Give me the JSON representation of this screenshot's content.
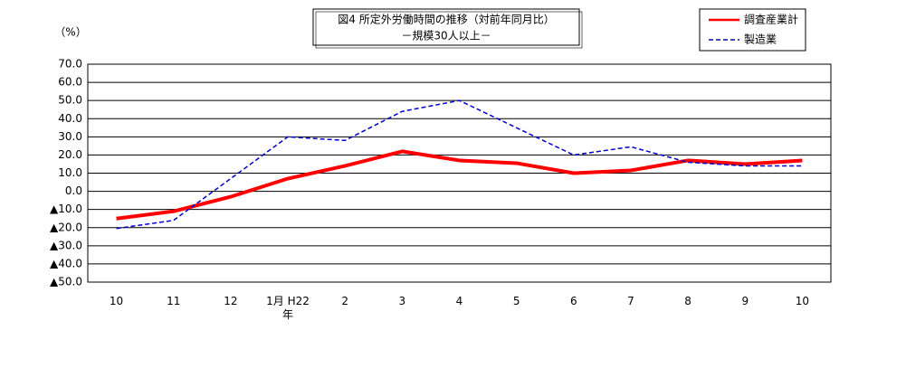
{
  "chart_data": {
    "type": "line",
    "title": "図4 所定外労働時間の推移（対前年同月比）",
    "subtitle": "－規模30人以上－",
    "y_label": "（%）",
    "categories": [
      "10",
      "11",
      "12",
      "1月 H22\n年",
      "2",
      "3",
      "4",
      "5",
      "6",
      "7",
      "8",
      "9",
      "10"
    ],
    "series": [
      {
        "name": "調査産業計",
        "color": "#ff0000",
        "dash": false,
        "values": [
          -15,
          -11,
          -3,
          7,
          14,
          22,
          17,
          15.5,
          10,
          11.5,
          17,
          15,
          17
        ]
      },
      {
        "name": "製造業",
        "color": "#0000cc",
        "dash": true,
        "values": [
          -20.5,
          -16,
          7,
          30,
          28,
          44,
          50,
          35,
          20,
          24.5,
          16,
          14,
          14
        ]
      }
    ],
    "ylim": [
      -50,
      70
    ],
    "yticks": [
      {
        "value": -50,
        "label": "▲50.0"
      },
      {
        "value": -40,
        "label": "▲40.0"
      },
      {
        "value": -30,
        "label": "▲30.0"
      },
      {
        "value": -20,
        "label": "▲20.0"
      },
      {
        "value": -10,
        "label": "▲10.0"
      },
      {
        "value": 0,
        "label": "0.0"
      },
      {
        "value": 10,
        "label": "10.0"
      },
      {
        "value": 20,
        "label": "20.0"
      },
      {
        "value": 30,
        "label": "30.0"
      },
      {
        "value": 40,
        "label": "40.0"
      },
      {
        "value": 50,
        "label": "50.0"
      },
      {
        "value": 60,
        "label": "60.0"
      },
      {
        "value": 70,
        "label": "70.0"
      }
    ],
    "grid": true,
    "legend": "top-right"
  }
}
